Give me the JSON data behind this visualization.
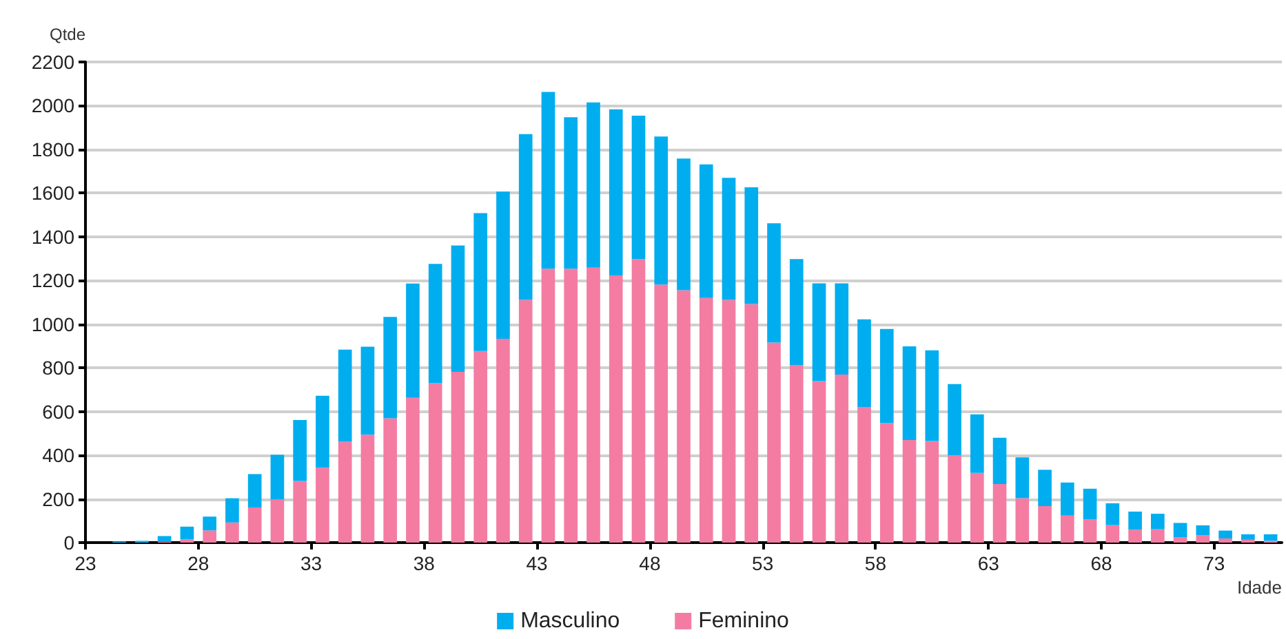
{
  "chart_data": {
    "type": "bar",
    "stacked": true,
    "xlabel": "Idade",
    "ylabel": "Qtde",
    "x": [
      23.5,
      24.5,
      25.5,
      26.5,
      27.5,
      28.5,
      29.5,
      30.5,
      31.5,
      32.5,
      33.5,
      34.5,
      35.5,
      36.5,
      37.5,
      38.5,
      39.5,
      40.5,
      41.5,
      42.5,
      43.5,
      44.5,
      45.5,
      46.5,
      47.5,
      48.5,
      49.5,
      50.5,
      51.5,
      52.5,
      53.5,
      54.5,
      55.5,
      56.5,
      57.5,
      58.5,
      59.5,
      60.5,
      61.5,
      62.5,
      63.5,
      64.5,
      65.5,
      66.5,
      67.5,
      68.5,
      69.5,
      70.5,
      71.5,
      72.5,
      73.5,
      74.5,
      75.5
    ],
    "series": [
      {
        "name": "Feminino",
        "color": "#f47ca3",
        "values": [
          0,
          0,
          null,
          5,
          15,
          56,
          92,
          161,
          197,
          282,
          343,
          462,
          494,
          569,
          663,
          730,
          782,
          877,
          933,
          1111,
          1254,
          1254,
          1258,
          1223,
          1298,
          1181,
          1155,
          1120,
          1111,
          1092,
          916,
          813,
          739,
          769,
          621,
          547,
          470,
          465,
          400,
          319,
          268,
          203,
          167,
          124,
          107,
          80,
          59,
          61,
          25,
          33,
          19,
          13,
          8
        ]
      },
      {
        "name": "Masculino",
        "color": "#00aeef",
        "values": [
          0,
          5,
          8,
          25,
          58,
          63,
          111,
          153,
          205,
          279,
          329,
          421,
          403,
          464,
          523,
          546,
          578,
          631,
          674,
          759,
          809,
          693,
          757,
          760,
          656,
          678,
          603,
          611,
          559,
          534,
          546,
          485,
          448,
          418,
          401,
          431,
          428,
          415,
          326,
          268,
          212,
          187,
          166,
          151,
          140,
          100,
          83,
          71,
          65,
          46,
          36,
          25,
          30
        ]
      }
    ],
    "xlim": [
      23,
      76
    ],
    "xticks": [
      23,
      28,
      33,
      38,
      43,
      48,
      53,
      58,
      63,
      68,
      73
    ],
    "ylim": [
      0,
      2200
    ],
    "yticks": [
      0,
      200,
      400,
      600,
      800,
      1000,
      1200,
      1400,
      1600,
      1800,
      2000,
      2200
    ],
    "grid": "y",
    "legend": "bottom"
  }
}
